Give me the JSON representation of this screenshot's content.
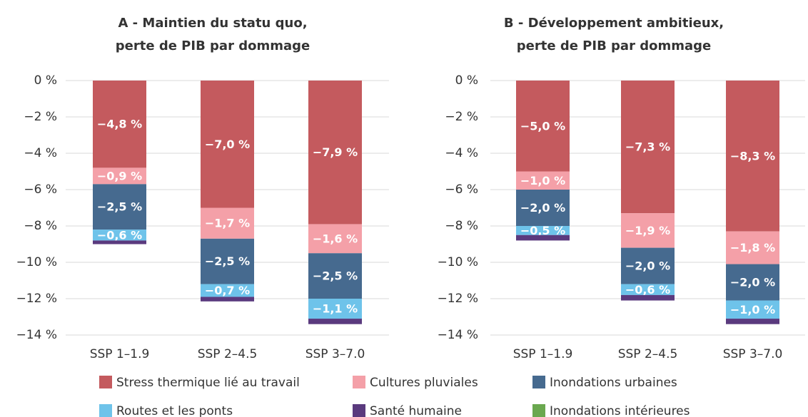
{
  "chart_data": [
    {
      "type": "stacked_bar",
      "title": "A - Maintien du statu quo,",
      "subtitle": "perte de PIB par dommage",
      "categories": [
        "SSP 1–1.9",
        "SSP 2–4.5",
        "SSP 3–7.0"
      ],
      "ylim": [
        -14,
        0
      ],
      "yticks": [
        {
          "value": 0,
          "label": "0 %"
        },
        {
          "value": -2,
          "label": "−2 %"
        },
        {
          "value": -4,
          "label": "−4 %"
        },
        {
          "value": -6,
          "label": "−6 %"
        },
        {
          "value": -8,
          "label": "−8 %"
        },
        {
          "value": -10,
          "label": "−10 %"
        },
        {
          "value": -12,
          "label": "−12 %"
        },
        {
          "value": -14,
          "label": "−14 %"
        }
      ],
      "grid": true,
      "series": [
        {
          "name": "Stress thermique lié au travail",
          "color": "#c45a5e",
          "values": [
            -4.8,
            -7.0,
            -7.9
          ],
          "value_labels": [
            "−4,8 %",
            "−7,0 %",
            "−7,9 %"
          ]
        },
        {
          "name": "Cultures pluviales",
          "color": "#f4a0a8",
          "values": [
            -0.9,
            -1.7,
            -1.6
          ],
          "value_labels": [
            "−0,9 %",
            "−1,7 %",
            "−1,6 %"
          ]
        },
        {
          "name": "Inondations urbaines",
          "color": "#466a8f",
          "values": [
            -2.5,
            -2.5,
            -2.5
          ],
          "value_labels": [
            "−2,5 %",
            "−2,5 %",
            "−2,5 %"
          ]
        },
        {
          "name": "Routes et les ponts",
          "color": "#6ec3ea",
          "values": [
            -0.6,
            -0.7,
            -1.1
          ],
          "value_labels": [
            "−0,6 %",
            "−0,7 %",
            "−1,1 %"
          ]
        },
        {
          "name": "Santé humaine",
          "color": "#5a3a7e",
          "values": [
            -0.2,
            -0.25,
            -0.3
          ]
        },
        {
          "name": "Inondations intérieures",
          "color": "#6aa84f",
          "values": [
            0,
            0,
            0
          ]
        }
      ]
    },
    {
      "type": "stacked_bar",
      "title": "B - Développement ambitieux,",
      "subtitle": "perte de PIB par dommage",
      "categories": [
        "SSP 1–1.9",
        "SSP 2–4.5",
        "SSP 3–7.0"
      ],
      "ylim": [
        -14,
        0
      ],
      "yticks": [
        {
          "value": 0,
          "label": "0 %"
        },
        {
          "value": -2,
          "label": "−2 %"
        },
        {
          "value": -4,
          "label": "−4 %"
        },
        {
          "value": -6,
          "label": "−6 %"
        },
        {
          "value": -8,
          "label": "−8 %"
        },
        {
          "value": -10,
          "label": "−10 %"
        },
        {
          "value": -12,
          "label": "−12 %"
        },
        {
          "value": -14,
          "label": "−14 %"
        }
      ],
      "grid": true,
      "series": [
        {
          "color": "#c45a5e",
          "values": [
            -5.0,
            -7.3,
            -8.3
          ],
          "value_labels": [
            "−5,0 %",
            "−7,3 %",
            "−8,3 %"
          ]
        },
        {
          "color": "#f4a0a8",
          "values": [
            -1.0,
            -1.9,
            -1.8
          ],
          "value_labels": [
            "−1,0 %",
            "−1,9 %",
            "−1,8 %"
          ]
        },
        {
          "color": "#466a8f",
          "values": [
            -2.0,
            -2.0,
            -2.0
          ],
          "value_labels": [
            "−2,0 %",
            "−2,0 %",
            "−2,0 %"
          ]
        },
        {
          "color": "#6ec3ea",
          "values": [
            -0.5,
            -0.6,
            -1.0
          ],
          "value_labels": [
            "−0,5 %",
            "−0,6 %",
            "−1,0 %"
          ]
        },
        {
          "color": "#5a3a7e",
          "values": [
            -0.3,
            -0.3,
            -0.3
          ]
        },
        {
          "color": "#6aa84f",
          "values": [
            0,
            0,
            0
          ]
        }
      ]
    }
  ]
}
